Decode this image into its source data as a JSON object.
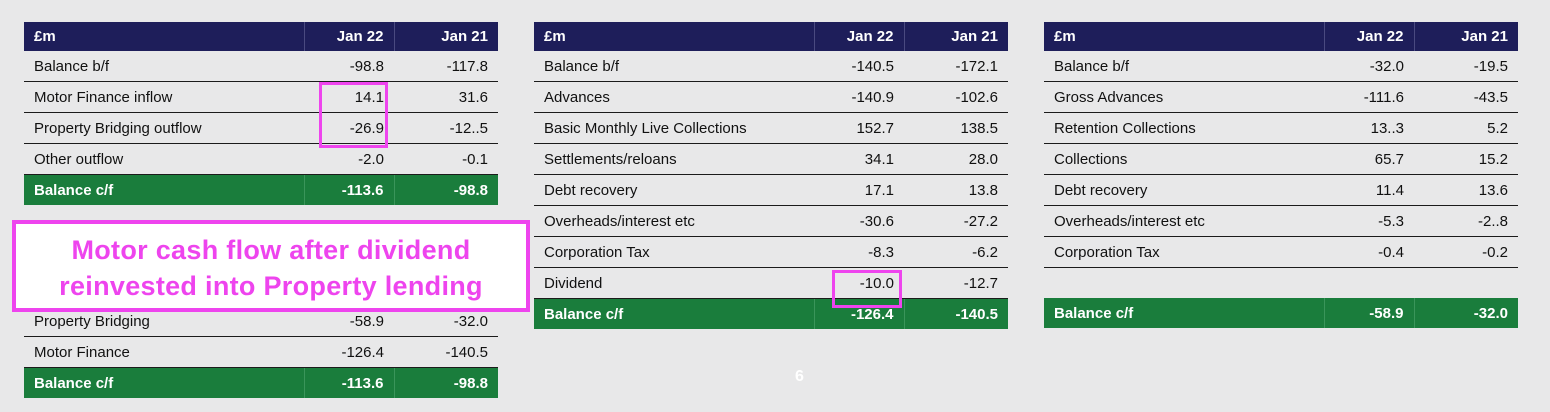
{
  "table1": {
    "header": [
      "£m",
      "Jan 22",
      "Jan 21"
    ],
    "rows": [
      [
        "Balance b/f",
        "-98.8",
        "-117.8"
      ],
      [
        "Motor Finance inflow",
        "14.1",
        "31.6"
      ],
      [
        "Property Bridging outflow",
        "-26.9",
        "-12..5"
      ],
      [
        "Other outflow",
        "-2.0",
        "-0.1"
      ]
    ],
    "total": [
      "Balance c/f",
      "-113.6",
      "-98.8"
    ]
  },
  "table2": {
    "header": [
      "£m",
      "Jan 22",
      "Jan 21"
    ],
    "rows": [
      [
        "Balance b/f",
        "-140.5",
        "-172.1"
      ],
      [
        "Advances",
        "-140.9",
        "-102.6"
      ],
      [
        "Basic Monthly Live Collections",
        "152.7",
        "138.5"
      ],
      [
        "Settlements/reloans",
        "34.1",
        "28.0"
      ],
      [
        "Debt recovery",
        "17.1",
        "13.8"
      ],
      [
        "Overheads/interest etc",
        "-30.6",
        "-27.2"
      ],
      [
        "Corporation Tax",
        "-8.3",
        "-6.2"
      ],
      [
        "Dividend",
        "-10.0",
        "-12.7"
      ]
    ],
    "total": [
      "Balance c/f",
      "-126.4",
      "-140.5"
    ]
  },
  "table3": {
    "header": [
      "£m",
      "Jan 22",
      "Jan 21"
    ],
    "rows": [
      [
        "Balance b/f",
        "-32.0",
        "-19.5"
      ],
      [
        "Gross Advances",
        "-111.6",
        "-43.5"
      ],
      [
        "Retention Collections",
        "13..3",
        "5.2"
      ],
      [
        "Collections",
        "65.7",
        "15.2"
      ],
      [
        "Debt recovery",
        "11.4",
        "13.6"
      ],
      [
        "Overheads/interest etc",
        "-5.3",
        "-2..8"
      ],
      [
        "Corporation Tax",
        "-0.4",
        "-0.2"
      ]
    ],
    "total": [
      "Balance c/f",
      "-58.9",
      "-32.0"
    ]
  },
  "table4": {
    "rows": [
      [
        "Property Bridging",
        "-58.9",
        "-32.0"
      ],
      [
        "Motor Finance",
        "-126.4",
        "-140.5"
      ]
    ],
    "total": [
      "Balance c/f",
      "-113.6",
      "-98.8"
    ]
  },
  "callout": {
    "line1": "Motor cash flow after dividend",
    "line2": "reinvested into Property lending"
  },
  "page_number": "6",
  "colors": {
    "header_bg": "#1e1e5a",
    "total_bg": "#1a7d3c",
    "highlight": "#ee44ee",
    "background": "#e8e8e9"
  }
}
